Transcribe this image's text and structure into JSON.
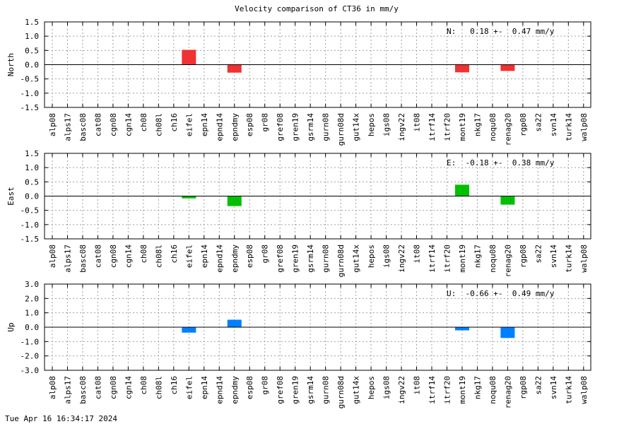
{
  "title": "Velocity comparison of CT36 in mm/y",
  "timestamp": "Tue Apr 16 16:34:17 2024",
  "chart_data": [
    {
      "type": "bar",
      "ylabel": "North",
      "stat_text": "N:   0.18 +-  0.47 mm/y",
      "color": "#f03232",
      "ylim": [
        -1.5,
        1.5
      ],
      "yticks": [
        "1.5",
        "1.0",
        "0.5",
        "0.0",
        "-0.5",
        "-1.0",
        "-1.5"
      ],
      "ytick_values": [
        1.5,
        1.0,
        0.5,
        0.0,
        -0.5,
        -1.0,
        -1.5
      ],
      "categories": [
        "alp08",
        "alps17",
        "basc08",
        "cat08",
        "cgn08",
        "cgn14",
        "ch08",
        "ch08l",
        "ch16",
        "eifel",
        "epn14",
        "epnd14",
        "epndmy",
        "esp08",
        "gr08",
        "gref08",
        "gren19",
        "gsrm14",
        "gurn08",
        "gurn08d",
        "gut14x",
        "hepos",
        "igs08",
        "ingv22",
        "it08",
        "itrf14",
        "itrf20",
        "mont19",
        "nkg17",
        "noqu08",
        "renag20",
        "rgp08",
        "sa22",
        "svn14",
        "turk14",
        "walp08"
      ],
      "values": [
        0,
        0,
        0,
        0,
        0,
        0,
        0,
        0,
        0,
        0.52,
        0,
        0,
        -0.28,
        0,
        0,
        0,
        0,
        0,
        0,
        0,
        0,
        0,
        0,
        0,
        0,
        0,
        0,
        -0.27,
        0,
        0,
        -0.22,
        0,
        0,
        0,
        0,
        0
      ],
      "grid": true
    },
    {
      "type": "bar",
      "ylabel": "East",
      "stat_text": "E:  -0.18 +-  0.38 mm/y",
      "color": "#00c000",
      "ylim": [
        -1.5,
        1.5
      ],
      "yticks": [
        "1.5",
        "1.0",
        "0.5",
        "0.0",
        "-0.5",
        "-1.0",
        "-1.5"
      ],
      "ytick_values": [
        1.5,
        1.0,
        0.5,
        0.0,
        -0.5,
        -1.0,
        -1.5
      ],
      "categories": [
        "alp08",
        "alps17",
        "basc08",
        "cat08",
        "cgn08",
        "cgn14",
        "ch08",
        "ch08l",
        "ch16",
        "eifel",
        "epn14",
        "epnd14",
        "epndmy",
        "esp08",
        "gr08",
        "gref08",
        "gren19",
        "gsrm14",
        "gurn08",
        "gurn08d",
        "gut14x",
        "hepos",
        "igs08",
        "ingv22",
        "it08",
        "itrf14",
        "itrf20",
        "mont19",
        "nkg17",
        "noqu08",
        "renag20",
        "rgp08",
        "sa22",
        "svn14",
        "turk14",
        "walp08"
      ],
      "values": [
        0,
        0,
        0,
        0,
        0,
        0,
        0,
        0,
        0,
        -0.08,
        0,
        0,
        -0.35,
        0,
        0,
        0,
        0,
        0,
        0,
        0,
        0,
        0,
        0,
        0,
        0,
        0,
        0,
        0.4,
        0,
        0,
        -0.3,
        0,
        0,
        0,
        0,
        0
      ],
      "grid": true
    },
    {
      "type": "bar",
      "ylabel": "Up",
      "stat_text": "U:  -0.66 +-  0.49 mm/y",
      "color": "#0080ff",
      "ylim": [
        -3.0,
        3.0
      ],
      "yticks": [
        "3.0",
        "2.0",
        "1.0",
        "0.0",
        "-1.0",
        "-2.0",
        "-3.0"
      ],
      "ytick_values": [
        3.0,
        2.0,
        1.0,
        0.0,
        -1.0,
        -2.0,
        -3.0
      ],
      "categories": [
        "alp08",
        "alps17",
        "basc08",
        "cat08",
        "cgn08",
        "cgn14",
        "ch08",
        "ch08l",
        "ch16",
        "eifel",
        "epn14",
        "epnd14",
        "epndmy",
        "esp08",
        "gr08",
        "gref08",
        "gren19",
        "gsrm14",
        "gurn08",
        "gurn08d",
        "gut14x",
        "hepos",
        "igs08",
        "ingv22",
        "it08",
        "itrf14",
        "itrf20",
        "mont19",
        "nkg17",
        "noqu08",
        "renag20",
        "rgp08",
        "sa22",
        "svn14",
        "turk14",
        "walp08"
      ],
      "values": [
        0,
        0,
        0,
        0,
        0,
        0,
        0,
        0,
        0,
        -0.38,
        0,
        0,
        0.52,
        0,
        0,
        0,
        0,
        0,
        0,
        0,
        0,
        0,
        0,
        0,
        0,
        0,
        0,
        -0.22,
        0,
        0,
        -0.75,
        0,
        0,
        0,
        0,
        0
      ],
      "grid": true
    }
  ]
}
